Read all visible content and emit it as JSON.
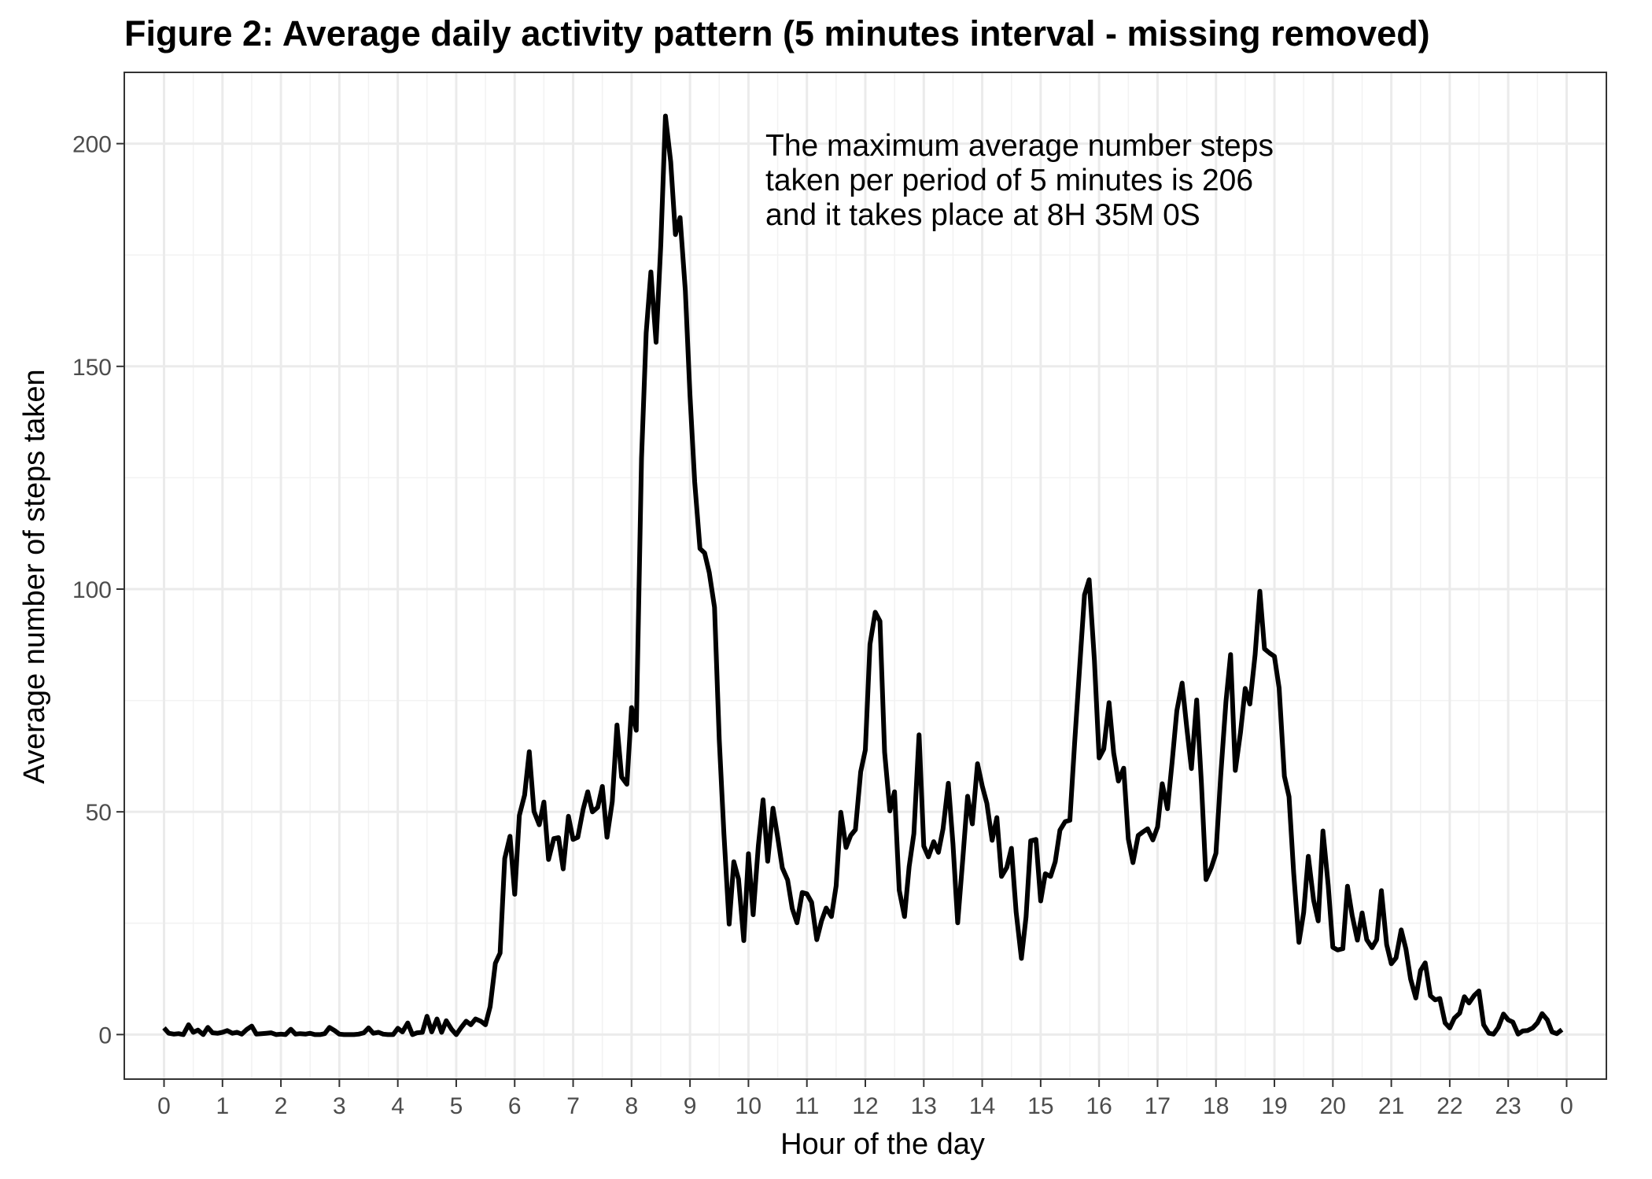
{
  "chart_data": {
    "type": "line",
    "title": "Figure 2: Average daily activity pattern (5 minutes interval - missing removed)",
    "xlabel": "Hour of the day",
    "ylabel": "Average number of steps taken",
    "x_tick_labels": [
      "0",
      "1",
      "2",
      "3",
      "4",
      "5",
      "6",
      "7",
      "8",
      "9",
      "10",
      "11",
      "12",
      "13",
      "14",
      "15",
      "16",
      "17",
      "18",
      "19",
      "20",
      "21",
      "22",
      "23",
      "0"
    ],
    "y_ticks": [
      0,
      50,
      100,
      150,
      200
    ],
    "xlim": [
      -0.68,
      24.68
    ],
    "ylim": [
      -10,
      216
    ],
    "grid": true,
    "legend": "none",
    "annotation": [
      "The maximum average number steps",
      "taken per period of 5 minutes is 206",
      "and it takes place at 8H 35M 0S"
    ],
    "series": [
      {
        "color": "#000000",
        "points": [
          [
            0.0,
            1.5
          ],
          [
            0.08,
            0.3
          ],
          [
            0.17,
            0.1
          ],
          [
            0.25,
            0.2
          ],
          [
            0.33,
            0.0
          ],
          [
            0.42,
            2.2
          ],
          [
            0.5,
            0.5
          ],
          [
            0.58,
            1.0
          ],
          [
            0.67,
            0.0
          ],
          [
            0.75,
            1.6
          ],
          [
            0.83,
            0.4
          ],
          [
            0.92,
            0.3
          ],
          [
            1.0,
            0.5
          ],
          [
            1.08,
            0.9
          ],
          [
            1.17,
            0.3
          ],
          [
            1.25,
            0.5
          ],
          [
            1.33,
            0.1
          ],
          [
            1.42,
            1.2
          ],
          [
            1.5,
            1.9
          ],
          [
            1.58,
            0.1
          ],
          [
            1.67,
            0.2
          ],
          [
            1.75,
            0.3
          ],
          [
            1.83,
            0.4
          ],
          [
            1.92,
            0.0
          ],
          [
            2.0,
            0.1
          ],
          [
            2.08,
            0.0
          ],
          [
            2.17,
            1.2
          ],
          [
            2.25,
            0.1
          ],
          [
            2.33,
            0.2
          ],
          [
            2.42,
            0.1
          ],
          [
            2.5,
            0.3
          ],
          [
            2.58,
            0.0
          ],
          [
            2.67,
            0.0
          ],
          [
            2.75,
            0.2
          ],
          [
            2.83,
            1.6
          ],
          [
            2.92,
            0.9
          ],
          [
            3.0,
            0.1
          ],
          [
            3.08,
            0.0
          ],
          [
            3.17,
            0.0
          ],
          [
            3.25,
            0.0
          ],
          [
            3.33,
            0.1
          ],
          [
            3.42,
            0.4
          ],
          [
            3.5,
            1.5
          ],
          [
            3.58,
            0.3
          ],
          [
            3.67,
            0.5
          ],
          [
            3.75,
            0.1
          ],
          [
            3.83,
            0.0
          ],
          [
            3.92,
            0.0
          ],
          [
            4.0,
            1.4
          ],
          [
            4.08,
            0.6
          ],
          [
            4.17,
            2.6
          ],
          [
            4.25,
            0.0
          ],
          [
            4.33,
            0.4
          ],
          [
            4.42,
            0.5
          ],
          [
            4.5,
            4.1
          ],
          [
            4.58,
            0.6
          ],
          [
            4.67,
            3.5
          ],
          [
            4.75,
            0.5
          ],
          [
            4.83,
            3.1
          ],
          [
            4.92,
            1.2
          ],
          [
            5.0,
            0.0
          ],
          [
            5.08,
            1.5
          ],
          [
            5.17,
            3.0
          ],
          [
            5.25,
            2.2
          ],
          [
            5.33,
            3.5
          ],
          [
            5.42,
            3.0
          ],
          [
            5.5,
            2.2
          ],
          [
            5.58,
            6.3
          ],
          [
            5.67,
            16.0
          ],
          [
            5.75,
            18.3
          ],
          [
            5.83,
            39.5
          ],
          [
            5.92,
            44.5
          ],
          [
            6.0,
            31.5
          ],
          [
            6.08,
            49.2
          ],
          [
            6.17,
            53.8
          ],
          [
            6.25,
            63.5
          ],
          [
            6.33,
            50.1
          ],
          [
            6.42,
            47.1
          ],
          [
            6.5,
            52.2
          ],
          [
            6.58,
            39.3
          ],
          [
            6.67,
            44.0
          ],
          [
            6.75,
            44.2
          ],
          [
            6.83,
            37.2
          ],
          [
            6.92,
            49.0
          ],
          [
            7.0,
            43.8
          ],
          [
            7.08,
            44.3
          ],
          [
            7.17,
            50.5
          ],
          [
            7.25,
            54.5
          ],
          [
            7.33,
            50.0
          ],
          [
            7.42,
            51.0
          ],
          [
            7.5,
            55.7
          ],
          [
            7.58,
            44.3
          ],
          [
            7.67,
            52.3
          ],
          [
            7.75,
            69.5
          ],
          [
            7.83,
            57.8
          ],
          [
            7.92,
            56.2
          ],
          [
            8.0,
            73.4
          ],
          [
            8.08,
            68.3
          ],
          [
            8.17,
            129.4
          ],
          [
            8.25,
            157.5
          ],
          [
            8.33,
            171.2
          ],
          [
            8.42,
            155.4
          ],
          [
            8.5,
            177.3
          ],
          [
            8.58,
            206.2
          ],
          [
            8.67,
            195.9
          ],
          [
            8.75,
            179.6
          ],
          [
            8.83,
            183.4
          ],
          [
            8.92,
            167.0
          ],
          [
            9.0,
            143.5
          ],
          [
            9.08,
            124.0
          ],
          [
            9.17,
            109.1
          ],
          [
            9.25,
            108.1
          ],
          [
            9.33,
            103.7
          ],
          [
            9.42,
            95.9
          ],
          [
            9.5,
            66.2
          ],
          [
            9.58,
            45.2
          ],
          [
            9.67,
            24.8
          ],
          [
            9.75,
            38.8
          ],
          [
            9.83,
            34.9
          ],
          [
            9.92,
            21.1
          ],
          [
            10.0,
            40.6
          ],
          [
            10.08,
            26.9
          ],
          [
            10.17,
            42.4
          ],
          [
            10.25,
            52.7
          ],
          [
            10.33,
            38.9
          ],
          [
            10.42,
            50.8
          ],
          [
            10.5,
            44.3
          ],
          [
            10.58,
            37.4
          ],
          [
            10.67,
            34.7
          ],
          [
            10.75,
            28.3
          ],
          [
            10.83,
            25.1
          ],
          [
            10.92,
            31.9
          ],
          [
            11.0,
            31.6
          ],
          [
            11.08,
            29.7
          ],
          [
            11.17,
            21.3
          ],
          [
            11.25,
            25.5
          ],
          [
            11.33,
            28.4
          ],
          [
            11.42,
            26.5
          ],
          [
            11.5,
            33.4
          ],
          [
            11.58,
            49.9
          ],
          [
            11.67,
            42.0
          ],
          [
            11.75,
            44.7
          ],
          [
            11.83,
            46.0
          ],
          [
            11.92,
            59.0
          ],
          [
            12.0,
            63.9
          ],
          [
            12.08,
            87.6
          ],
          [
            12.17,
            94.8
          ],
          [
            12.25,
            92.8
          ],
          [
            12.33,
            63.4
          ],
          [
            12.42,
            50.2
          ],
          [
            12.5,
            54.5
          ],
          [
            12.58,
            32.4
          ],
          [
            12.67,
            26.5
          ],
          [
            12.75,
            37.7
          ],
          [
            12.83,
            45.1
          ],
          [
            12.92,
            67.3
          ],
          [
            13.0,
            42.3
          ],
          [
            13.08,
            39.9
          ],
          [
            13.17,
            43.3
          ],
          [
            13.25,
            40.9
          ],
          [
            13.33,
            46.2
          ],
          [
            13.42,
            56.4
          ],
          [
            13.5,
            42.8
          ],
          [
            13.58,
            25.1
          ],
          [
            13.67,
            39.9
          ],
          [
            13.75,
            53.5
          ],
          [
            13.83,
            47.3
          ],
          [
            13.92,
            60.8
          ],
          [
            14.0,
            55.8
          ],
          [
            14.08,
            51.9
          ],
          [
            14.17,
            43.6
          ],
          [
            14.25,
            48.7
          ],
          [
            14.33,
            35.5
          ],
          [
            14.42,
            37.5
          ],
          [
            14.5,
            41.8
          ],
          [
            14.58,
            27.5
          ],
          [
            14.67,
            17.1
          ],
          [
            14.75,
            26.4
          ],
          [
            14.83,
            43.5
          ],
          [
            14.92,
            43.8
          ],
          [
            15.0,
            30.0
          ],
          [
            15.08,
            36.1
          ],
          [
            15.17,
            35.5
          ],
          [
            15.25,
            38.8
          ],
          [
            15.33,
            45.9
          ],
          [
            15.42,
            47.8
          ],
          [
            15.5,
            48.1
          ],
          [
            15.58,
            65.3
          ],
          [
            15.67,
            82.9
          ],
          [
            15.75,
            98.7
          ],
          [
            15.83,
            102.1
          ],
          [
            15.92,
            84.0
          ],
          [
            16.0,
            62.1
          ],
          [
            16.08,
            64.1
          ],
          [
            16.17,
            74.5
          ],
          [
            16.25,
            63.2
          ],
          [
            16.33,
            56.9
          ],
          [
            16.42,
            59.8
          ],
          [
            16.5,
            43.9
          ],
          [
            16.58,
            38.6
          ],
          [
            16.67,
            44.7
          ],
          [
            16.75,
            45.5
          ],
          [
            16.83,
            46.2
          ],
          [
            16.92,
            43.7
          ],
          [
            17.0,
            46.6
          ],
          [
            17.08,
            56.3
          ],
          [
            17.17,
            50.7
          ],
          [
            17.25,
            61.2
          ],
          [
            17.33,
            72.7
          ],
          [
            17.42,
            78.9
          ],
          [
            17.5,
            68.9
          ],
          [
            17.58,
            59.7
          ],
          [
            17.67,
            75.1
          ],
          [
            17.75,
            56.5
          ],
          [
            17.83,
            34.8
          ],
          [
            17.92,
            37.5
          ],
          [
            18.0,
            40.7
          ],
          [
            18.08,
            58.0
          ],
          [
            18.17,
            74.7
          ],
          [
            18.25,
            85.3
          ],
          [
            18.33,
            59.3
          ],
          [
            18.42,
            67.8
          ],
          [
            18.5,
            77.7
          ],
          [
            18.58,
            74.2
          ],
          [
            18.67,
            85.3
          ],
          [
            18.75,
            99.5
          ],
          [
            18.83,
            86.6
          ],
          [
            18.92,
            85.6
          ],
          [
            19.0,
            84.9
          ],
          [
            19.08,
            77.8
          ],
          [
            19.17,
            58.0
          ],
          [
            19.25,
            53.4
          ],
          [
            19.33,
            36.3
          ],
          [
            19.42,
            20.7
          ],
          [
            19.5,
            27.4
          ],
          [
            19.58,
            40.0
          ],
          [
            19.67,
            30.2
          ],
          [
            19.75,
            25.5
          ],
          [
            19.83,
            45.7
          ],
          [
            19.92,
            33.5
          ],
          [
            20.0,
            19.6
          ],
          [
            20.08,
            19.0
          ],
          [
            20.17,
            19.3
          ],
          [
            20.25,
            33.3
          ],
          [
            20.33,
            26.8
          ],
          [
            20.42,
            21.2
          ],
          [
            20.5,
            27.3
          ],
          [
            20.58,
            21.3
          ],
          [
            20.67,
            19.5
          ],
          [
            20.75,
            21.3
          ],
          [
            20.83,
            32.3
          ],
          [
            20.92,
            20.2
          ],
          [
            21.0,
            15.9
          ],
          [
            21.08,
            17.2
          ],
          [
            21.17,
            23.5
          ],
          [
            21.25,
            19.2
          ],
          [
            21.33,
            12.5
          ],
          [
            21.42,
            8.2
          ],
          [
            21.5,
            14.4
          ],
          [
            21.58,
            16.1
          ],
          [
            21.67,
            8.7
          ],
          [
            21.75,
            7.8
          ],
          [
            21.83,
            8.1
          ],
          [
            21.92,
            2.6
          ],
          [
            22.0,
            1.5
          ],
          [
            22.08,
            3.7
          ],
          [
            22.17,
            4.8
          ],
          [
            22.25,
            8.5
          ],
          [
            22.33,
            7.1
          ],
          [
            22.42,
            8.8
          ],
          [
            22.5,
            9.8
          ],
          [
            22.58,
            2.2
          ],
          [
            22.67,
            0.3
          ],
          [
            22.75,
            0.1
          ],
          [
            22.83,
            1.6
          ],
          [
            22.92,
            4.6
          ],
          [
            23.0,
            3.3
          ],
          [
            23.08,
            2.8
          ],
          [
            23.17,
            0.1
          ],
          [
            23.25,
            0.8
          ],
          [
            23.33,
            0.9
          ],
          [
            23.42,
            1.5
          ],
          [
            23.5,
            2.6
          ],
          [
            23.58,
            4.7
          ],
          [
            23.67,
            3.3
          ],
          [
            23.75,
            0.6
          ],
          [
            23.83,
            0.2
          ],
          [
            23.92,
            1.1
          ]
        ]
      }
    ]
  }
}
